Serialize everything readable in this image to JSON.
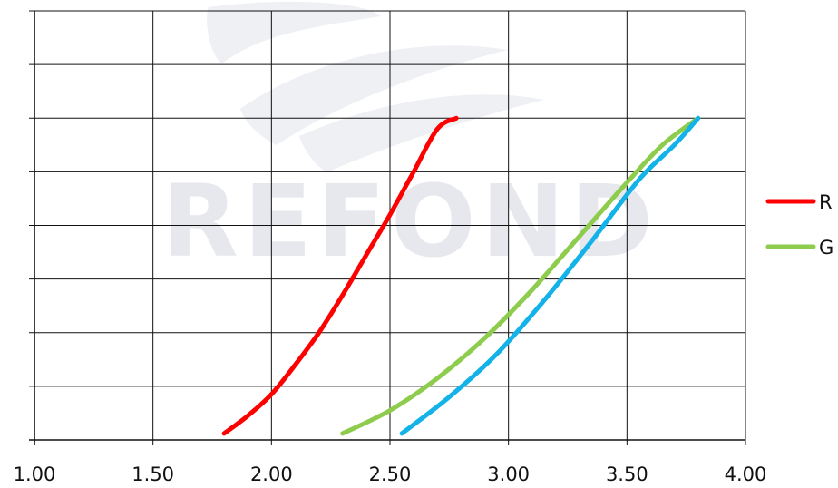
{
  "watermark": {
    "text": "REFOND",
    "color": "#e6e8ee"
  },
  "chart_data": {
    "type": "line",
    "title": "",
    "xlabel": "",
    "ylabel": "",
    "xlim": [
      1.0,
      4.0
    ],
    "ylim": [
      0,
      8
    ],
    "x_ticks": [
      "1.00",
      "1.50",
      "2.00",
      "2.50",
      "3.00",
      "3.50",
      "4.00"
    ],
    "y_gridlines": 8,
    "grid": true,
    "legend_position": "right",
    "series": [
      {
        "name": "R",
        "color": "#ff0000",
        "points": [
          [
            1.8,
            0.12
          ],
          [
            1.9,
            0.45
          ],
          [
            2.0,
            0.85
          ],
          [
            2.1,
            1.4
          ],
          [
            2.2,
            2.0
          ],
          [
            2.3,
            2.7
          ],
          [
            2.4,
            3.45
          ],
          [
            2.5,
            4.2
          ],
          [
            2.6,
            5.0
          ],
          [
            2.7,
            5.8
          ],
          [
            2.78,
            6.0
          ]
        ]
      },
      {
        "name": "G",
        "color": "#8dcc4c",
        "points": [
          [
            2.3,
            0.12
          ],
          [
            2.5,
            0.55
          ],
          [
            2.7,
            1.15
          ],
          [
            2.9,
            1.9
          ],
          [
            3.1,
            2.8
          ],
          [
            3.3,
            3.8
          ],
          [
            3.5,
            4.8
          ],
          [
            3.65,
            5.5
          ],
          [
            3.8,
            6.0
          ]
        ]
      },
      {
        "name": "",
        "color": "#13b2e8",
        "points": [
          [
            2.55,
            0.12
          ],
          [
            2.75,
            0.8
          ],
          [
            2.95,
            1.6
          ],
          [
            3.15,
            2.6
          ],
          [
            3.35,
            3.7
          ],
          [
            3.55,
            4.85
          ],
          [
            3.7,
            5.5
          ],
          [
            3.8,
            6.0
          ]
        ]
      }
    ]
  }
}
